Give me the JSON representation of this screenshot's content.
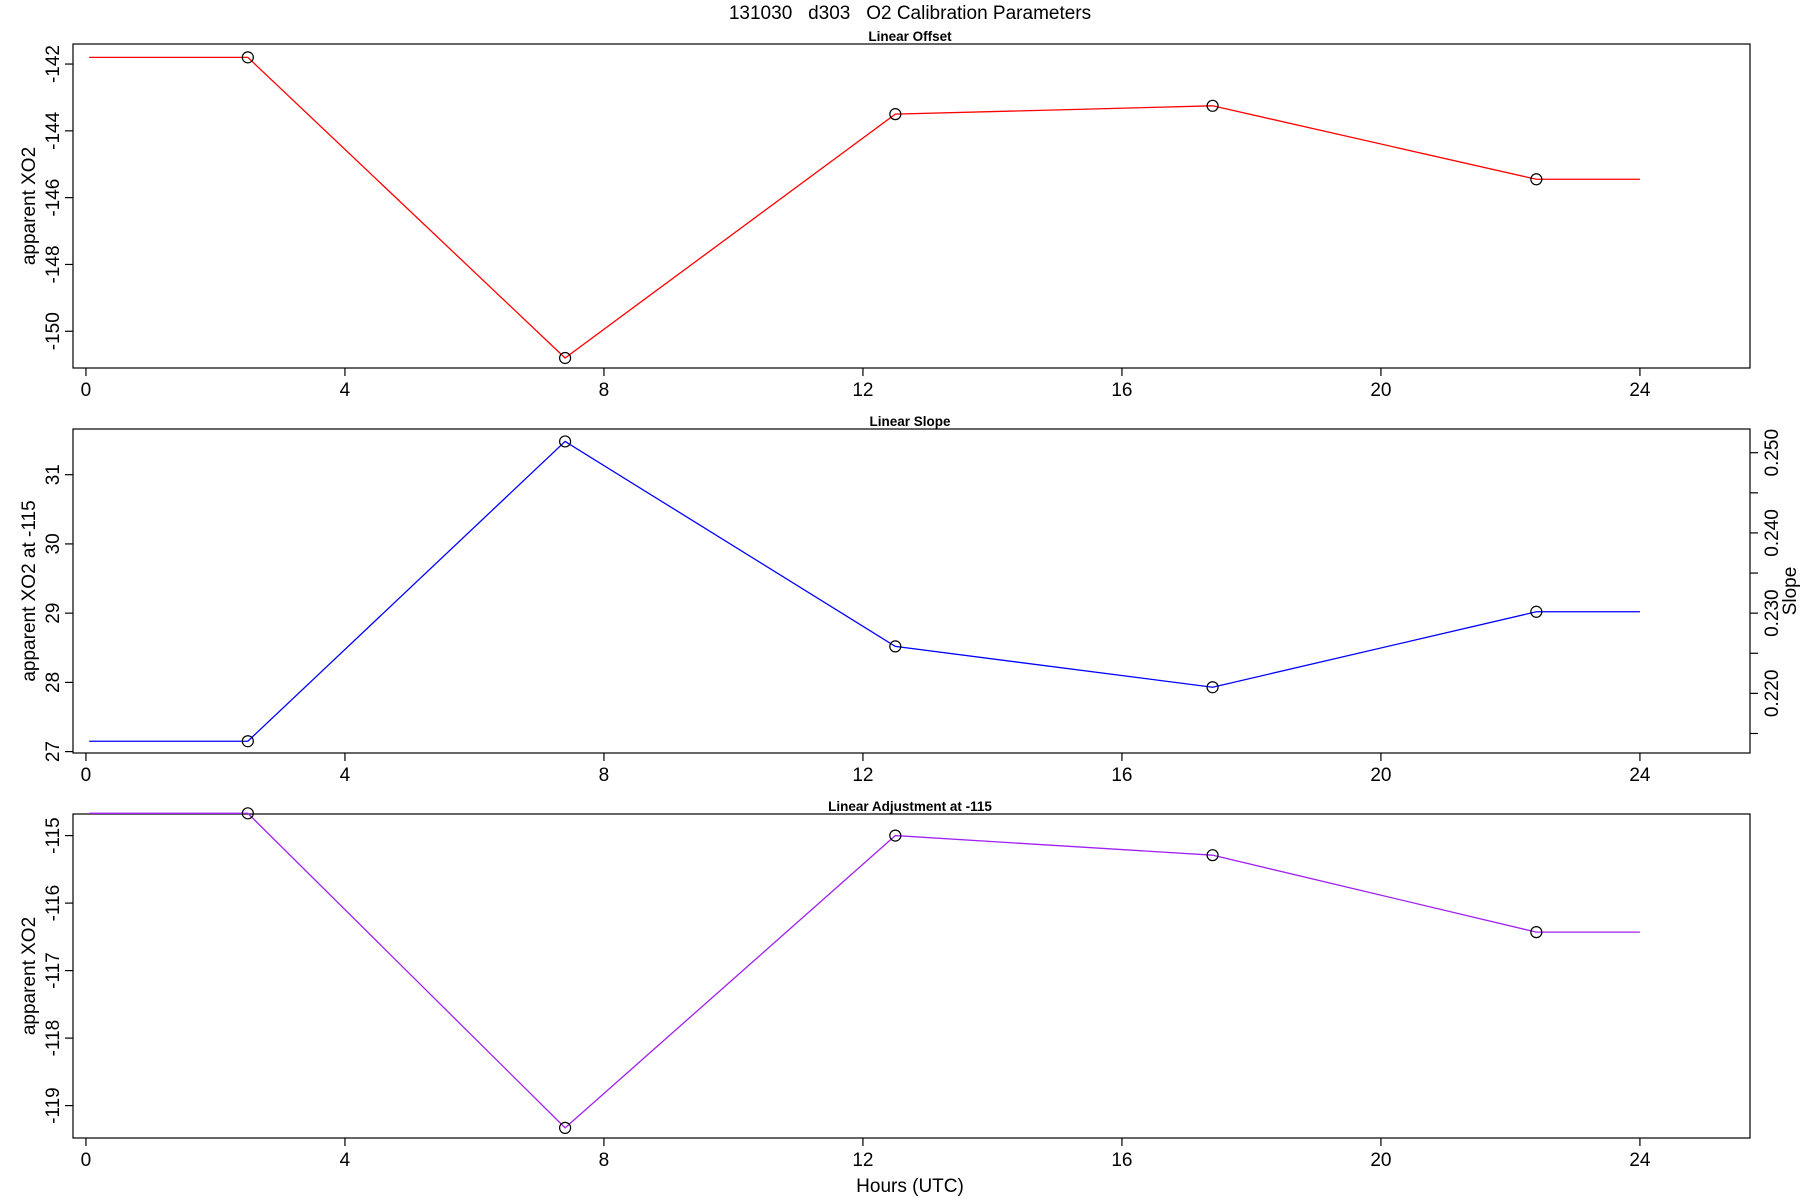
{
  "main_title": "131030   d303   O2 Calibration Parameters",
  "xlabel": "Hours (UTC)",
  "colors": {
    "offset": "#ff0000",
    "slope": "#0000ff",
    "adjustment": "#a020f0",
    "points": "#000000"
  },
  "chart_data": [
    {
      "type": "line",
      "title": "Linear Offset",
      "ylabel": "apparent XO2",
      "xlim": [
        -0.2,
        25.7
      ],
      "ylim": [
        -151.1,
        -141.4
      ],
      "xticks": [
        "0",
        "4",
        "8",
        "12",
        "16",
        "20",
        "24"
      ],
      "yticks": [
        "-142",
        "-144",
        "-146",
        "-148",
        "-150"
      ],
      "series": [
        {
          "x": [
            0.05,
            2.5,
            7.4,
            12.5,
            17.4,
            22.4,
            24.0
          ],
          "y": [
            -141.8,
            -141.8,
            -150.8,
            -143.5,
            -143.25,
            -145.45,
            -145.45
          ]
        }
      ],
      "points": {
        "x": [
          2.5,
          7.4,
          12.5,
          17.4,
          22.4
        ],
        "y": [
          -141.8,
          -150.8,
          -143.5,
          -143.25,
          -145.45
        ]
      }
    },
    {
      "type": "line",
      "title": "Linear Slope",
      "ylabel": "apparent XO2 at -115",
      "y2label": "Slope",
      "xlim": [
        -0.2,
        25.7
      ],
      "ylim": [
        26.98,
        31.66
      ],
      "xticks": [
        "0",
        "4",
        "8",
        "12",
        "16",
        "20",
        "24"
      ],
      "yticks": [
        "27",
        "28",
        "29",
        "30",
        "31"
      ],
      "y2ticks": [
        "0.220",
        "0.230",
        "0.240",
        "0.250"
      ],
      "y2_tick_values": [
        0.215,
        0.22,
        0.225,
        0.23,
        0.235,
        0.24,
        0.245,
        0.25
      ],
      "y2_map": {
        "at_29": 0.23,
        "per_unit": 0.00863
      },
      "series": [
        {
          "x": [
            0.05,
            2.5,
            7.4,
            12.5,
            17.4,
            22.4,
            24.0
          ],
          "y": [
            27.15,
            27.15,
            31.48,
            28.52,
            27.93,
            29.02,
            29.02
          ]
        }
      ],
      "points": {
        "x": [
          2.5,
          7.4,
          12.5,
          17.4,
          22.4
        ],
        "y": [
          27.15,
          31.48,
          28.52,
          27.93,
          29.02
        ]
      }
    },
    {
      "type": "line",
      "title": "Linear Adjustment at -115",
      "ylabel": "apparent XO2",
      "xlim": [
        -0.2,
        25.7
      ],
      "ylim": [
        -119.48,
        -114.68
      ],
      "xticks": [
        "0",
        "4",
        "8",
        "12",
        "16",
        "20",
        "24"
      ],
      "yticks": [
        "-115",
        "-116",
        "-117",
        "-118",
        "-119"
      ],
      "series": [
        {
          "x": [
            0.05,
            2.5,
            7.4,
            12.5,
            17.4,
            22.4,
            24.0
          ],
          "y": [
            -114.67,
            -114.67,
            -119.33,
            -115.0,
            -115.29,
            -116.43,
            -116.43
          ]
        }
      ],
      "points": {
        "x": [
          2.5,
          7.4,
          12.5,
          17.4,
          22.4
        ],
        "y": [
          -114.67,
          -119.33,
          -115.0,
          -115.29,
          -116.43
        ]
      }
    }
  ]
}
